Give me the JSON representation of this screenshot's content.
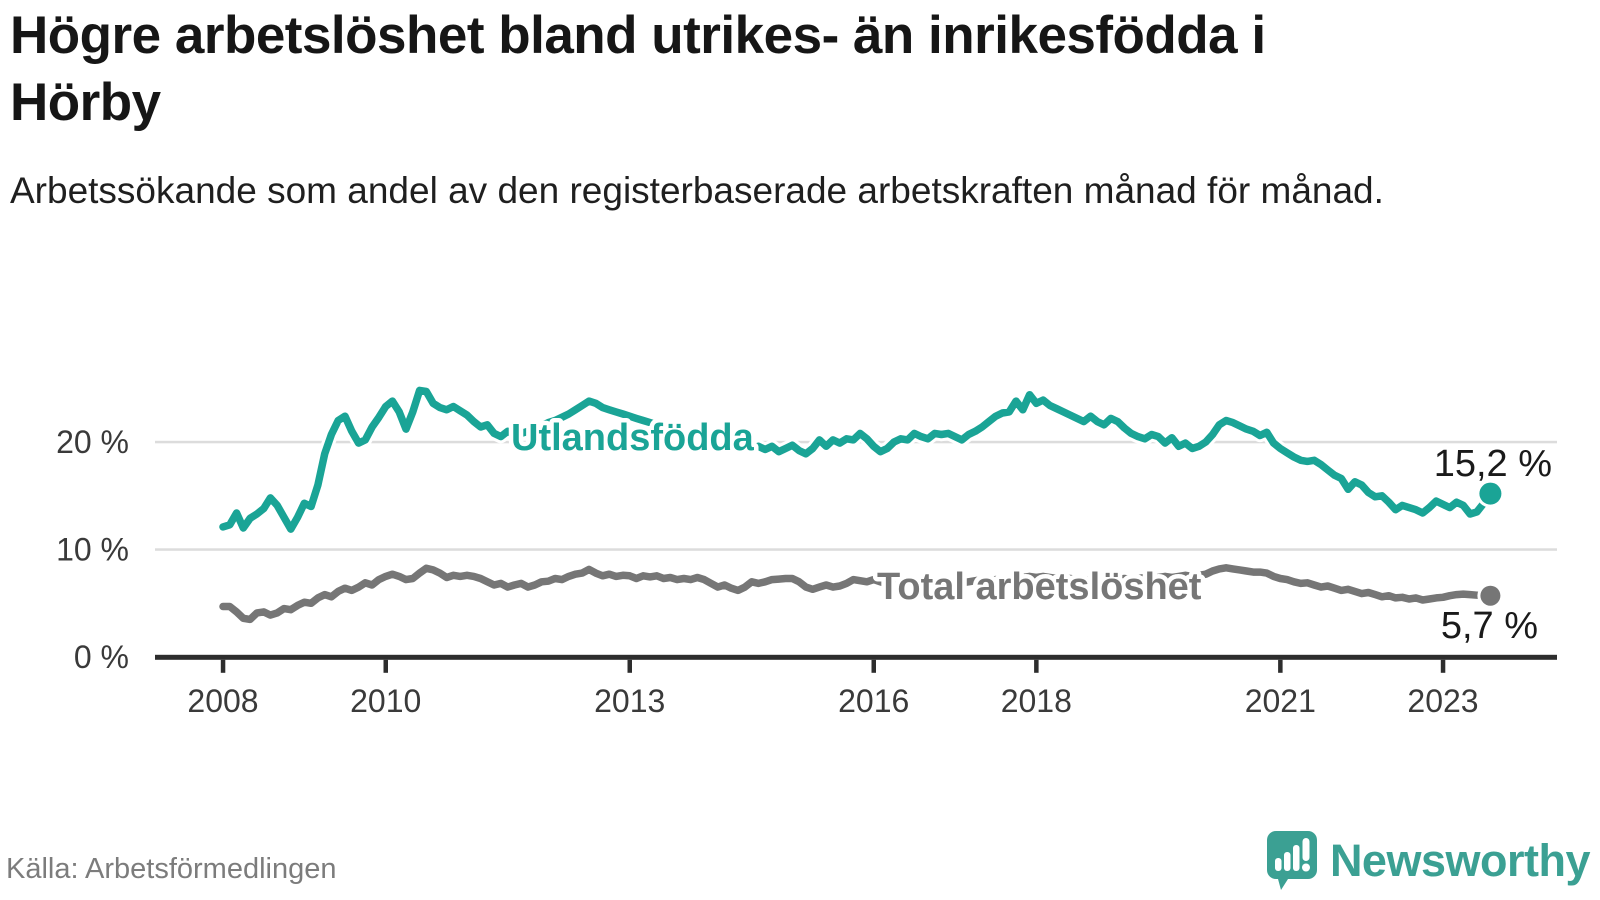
{
  "header": {
    "title": "Högre arbetslöshet bland utrikes- än inrikesfödda i Hörby",
    "subtitle": "Arbetssökande som andel av den registerbaserade arbetskraften månad för månad."
  },
  "footer": {
    "source": "Källa: Arbetsförmedlingen",
    "brand": "Newsworthy"
  },
  "colors": {
    "foreign_line": "#1aa496",
    "total_line": "#767676",
    "axis": "#2d2d2d",
    "grid": "#dcdcdc",
    "tick_text": "#3a3a3a",
    "value_text": "#1a1a1a",
    "logo": "#3ba093",
    "background": "#ffffff"
  },
  "chart_data": {
    "type": "line",
    "title": "Högre arbetslöshet bland utrikes- än inrikesfödda i Hörby",
    "subtitle": "Arbetssökande som andel av den registerbaserade arbetskraften månad för månad.",
    "unit": "%",
    "x_start_year": 2008,
    "points_per_year": 12,
    "x_ticks": [
      2008,
      2010,
      2013,
      2016,
      2018,
      2021,
      2023
    ],
    "y_ticks": [
      {
        "value": 0,
        "label": "0 %"
      },
      {
        "value": 10,
        "label": "10 %"
      },
      {
        "value": 20,
        "label": "20 %"
      }
    ],
    "ylim": [
      0,
      26
    ],
    "grid_values": [
      10,
      20
    ],
    "legend_position": "inline-labels",
    "series": [
      {
        "name": "Utlandsfödda",
        "color": "#1aa496",
        "end_label": "15,2 %",
        "end_value": 15.2,
        "values": [
          12.1,
          12.3,
          13.4,
          12.0,
          12.9,
          13.3,
          13.8,
          14.8,
          14.1,
          13.0,
          11.9,
          13.0,
          14.3,
          14.0,
          16.0,
          18.9,
          20.7,
          22.0,
          22.4,
          21.0,
          19.9,
          20.2,
          21.4,
          22.3,
          23.3,
          23.8,
          22.8,
          21.2,
          22.8,
          24.8,
          24.7,
          23.6,
          23.2,
          23.0,
          23.3,
          22.9,
          22.5,
          21.9,
          21.4,
          21.6,
          20.8,
          20.5,
          21.0,
          20.7,
          20.8,
          21.0,
          21.2,
          21.5,
          21.8,
          22.0,
          22.3,
          22.6,
          23.0,
          23.4,
          23.8,
          23.6,
          23.2,
          23.0,
          22.8,
          22.6,
          22.4,
          22.2,
          22.0,
          21.8,
          21.6,
          21.4,
          21.2,
          21.0,
          20.8,
          20.6,
          20.4,
          20.2,
          20.1,
          19.9,
          19.8,
          19.6,
          19.5,
          19.7,
          19.4,
          19.6,
          19.3,
          19.6,
          19.1,
          19.4,
          19.7,
          19.2,
          18.9,
          19.4,
          20.2,
          19.6,
          20.2,
          19.9,
          20.3,
          20.2,
          20.8,
          20.3,
          19.6,
          19.1,
          19.4,
          20.0,
          20.3,
          20.2,
          20.8,
          20.5,
          20.3,
          20.8,
          20.7,
          20.8,
          20.5,
          20.2,
          20.7,
          21.0,
          21.4,
          21.9,
          22.4,
          22.7,
          22.8,
          23.8,
          23.0,
          24.4,
          23.6,
          23.9,
          23.4,
          23.1,
          22.8,
          22.5,
          22.2,
          21.9,
          22.4,
          21.9,
          21.6,
          22.2,
          21.9,
          21.3,
          20.8,
          20.5,
          20.3,
          20.7,
          20.5,
          19.9,
          20.4,
          19.6,
          19.9,
          19.4,
          19.6,
          20.0,
          20.7,
          21.6,
          22.0,
          21.8,
          21.5,
          21.2,
          21.0,
          20.6,
          20.9,
          19.9,
          19.4,
          19.0,
          18.6,
          18.3,
          18.2,
          18.3,
          17.9,
          17.4,
          16.9,
          16.6,
          15.6,
          16.3,
          16.0,
          15.3,
          14.9,
          15.0,
          14.4,
          13.7,
          14.1,
          13.9,
          13.7,
          13.4,
          13.9,
          14.5,
          14.2,
          13.9,
          14.4,
          14.1,
          13.3,
          13.5,
          14.3,
          15.2
        ]
      },
      {
        "name": "Total arbetslöshet",
        "color": "#767676",
        "end_label": "5,7 %",
        "end_value": 5.7,
        "values": [
          4.7,
          4.7,
          4.2,
          3.6,
          3.5,
          4.1,
          4.2,
          3.9,
          4.1,
          4.5,
          4.4,
          4.8,
          5.1,
          5.0,
          5.5,
          5.8,
          5.6,
          6.1,
          6.4,
          6.2,
          6.5,
          6.9,
          6.7,
          7.2,
          7.5,
          7.7,
          7.5,
          7.2,
          7.3,
          7.8,
          8.25,
          8.1,
          7.8,
          7.4,
          7.6,
          7.5,
          7.6,
          7.5,
          7.3,
          7.0,
          6.7,
          6.85,
          6.5,
          6.7,
          6.85,
          6.5,
          6.7,
          7.0,
          7.05,
          7.3,
          7.2,
          7.5,
          7.7,
          7.8,
          8.15,
          7.8,
          7.55,
          7.7,
          7.5,
          7.6,
          7.55,
          7.3,
          7.55,
          7.45,
          7.55,
          7.3,
          7.4,
          7.2,
          7.3,
          7.2,
          7.4,
          7.2,
          6.85,
          6.5,
          6.7,
          6.4,
          6.2,
          6.5,
          7.0,
          6.85,
          7.0,
          7.2,
          7.25,
          7.3,
          7.3,
          7.0,
          6.5,
          6.3,
          6.5,
          6.7,
          6.5,
          6.6,
          6.85,
          7.2,
          7.1,
          7.0,
          7.2,
          7.0,
          6.8,
          6.9,
          7.0,
          7.1,
          7.0,
          6.9,
          7.0,
          7.1,
          7.0,
          7.1,
          7.0,
          6.9,
          7.0,
          7.1,
          7.2,
          7.1,
          7.2,
          7.3,
          7.2,
          7.3,
          7.4,
          7.5,
          7.4,
          7.5,
          7.4,
          7.3,
          7.2,
          7.3,
          7.2,
          7.1,
          7.2,
          7.3,
          7.2,
          7.3,
          7.2,
          7.3,
          7.2,
          7.3,
          7.4,
          7.3,
          7.4,
          7.5,
          7.4,
          7.5,
          7.6,
          7.5,
          7.6,
          7.7,
          8.0,
          8.2,
          8.3,
          8.2,
          8.1,
          8.0,
          7.9,
          7.9,
          7.8,
          7.5,
          7.3,
          7.2,
          7.0,
          6.85,
          6.9,
          6.7,
          6.5,
          6.6,
          6.4,
          6.2,
          6.3,
          6.1,
          5.9,
          6.0,
          5.8,
          5.6,
          5.7,
          5.5,
          5.55,
          5.4,
          5.5,
          5.3,
          5.4,
          5.5,
          5.55,
          5.7,
          5.8,
          5.85,
          5.8,
          5.75,
          5.7,
          5.7
        ]
      }
    ]
  }
}
